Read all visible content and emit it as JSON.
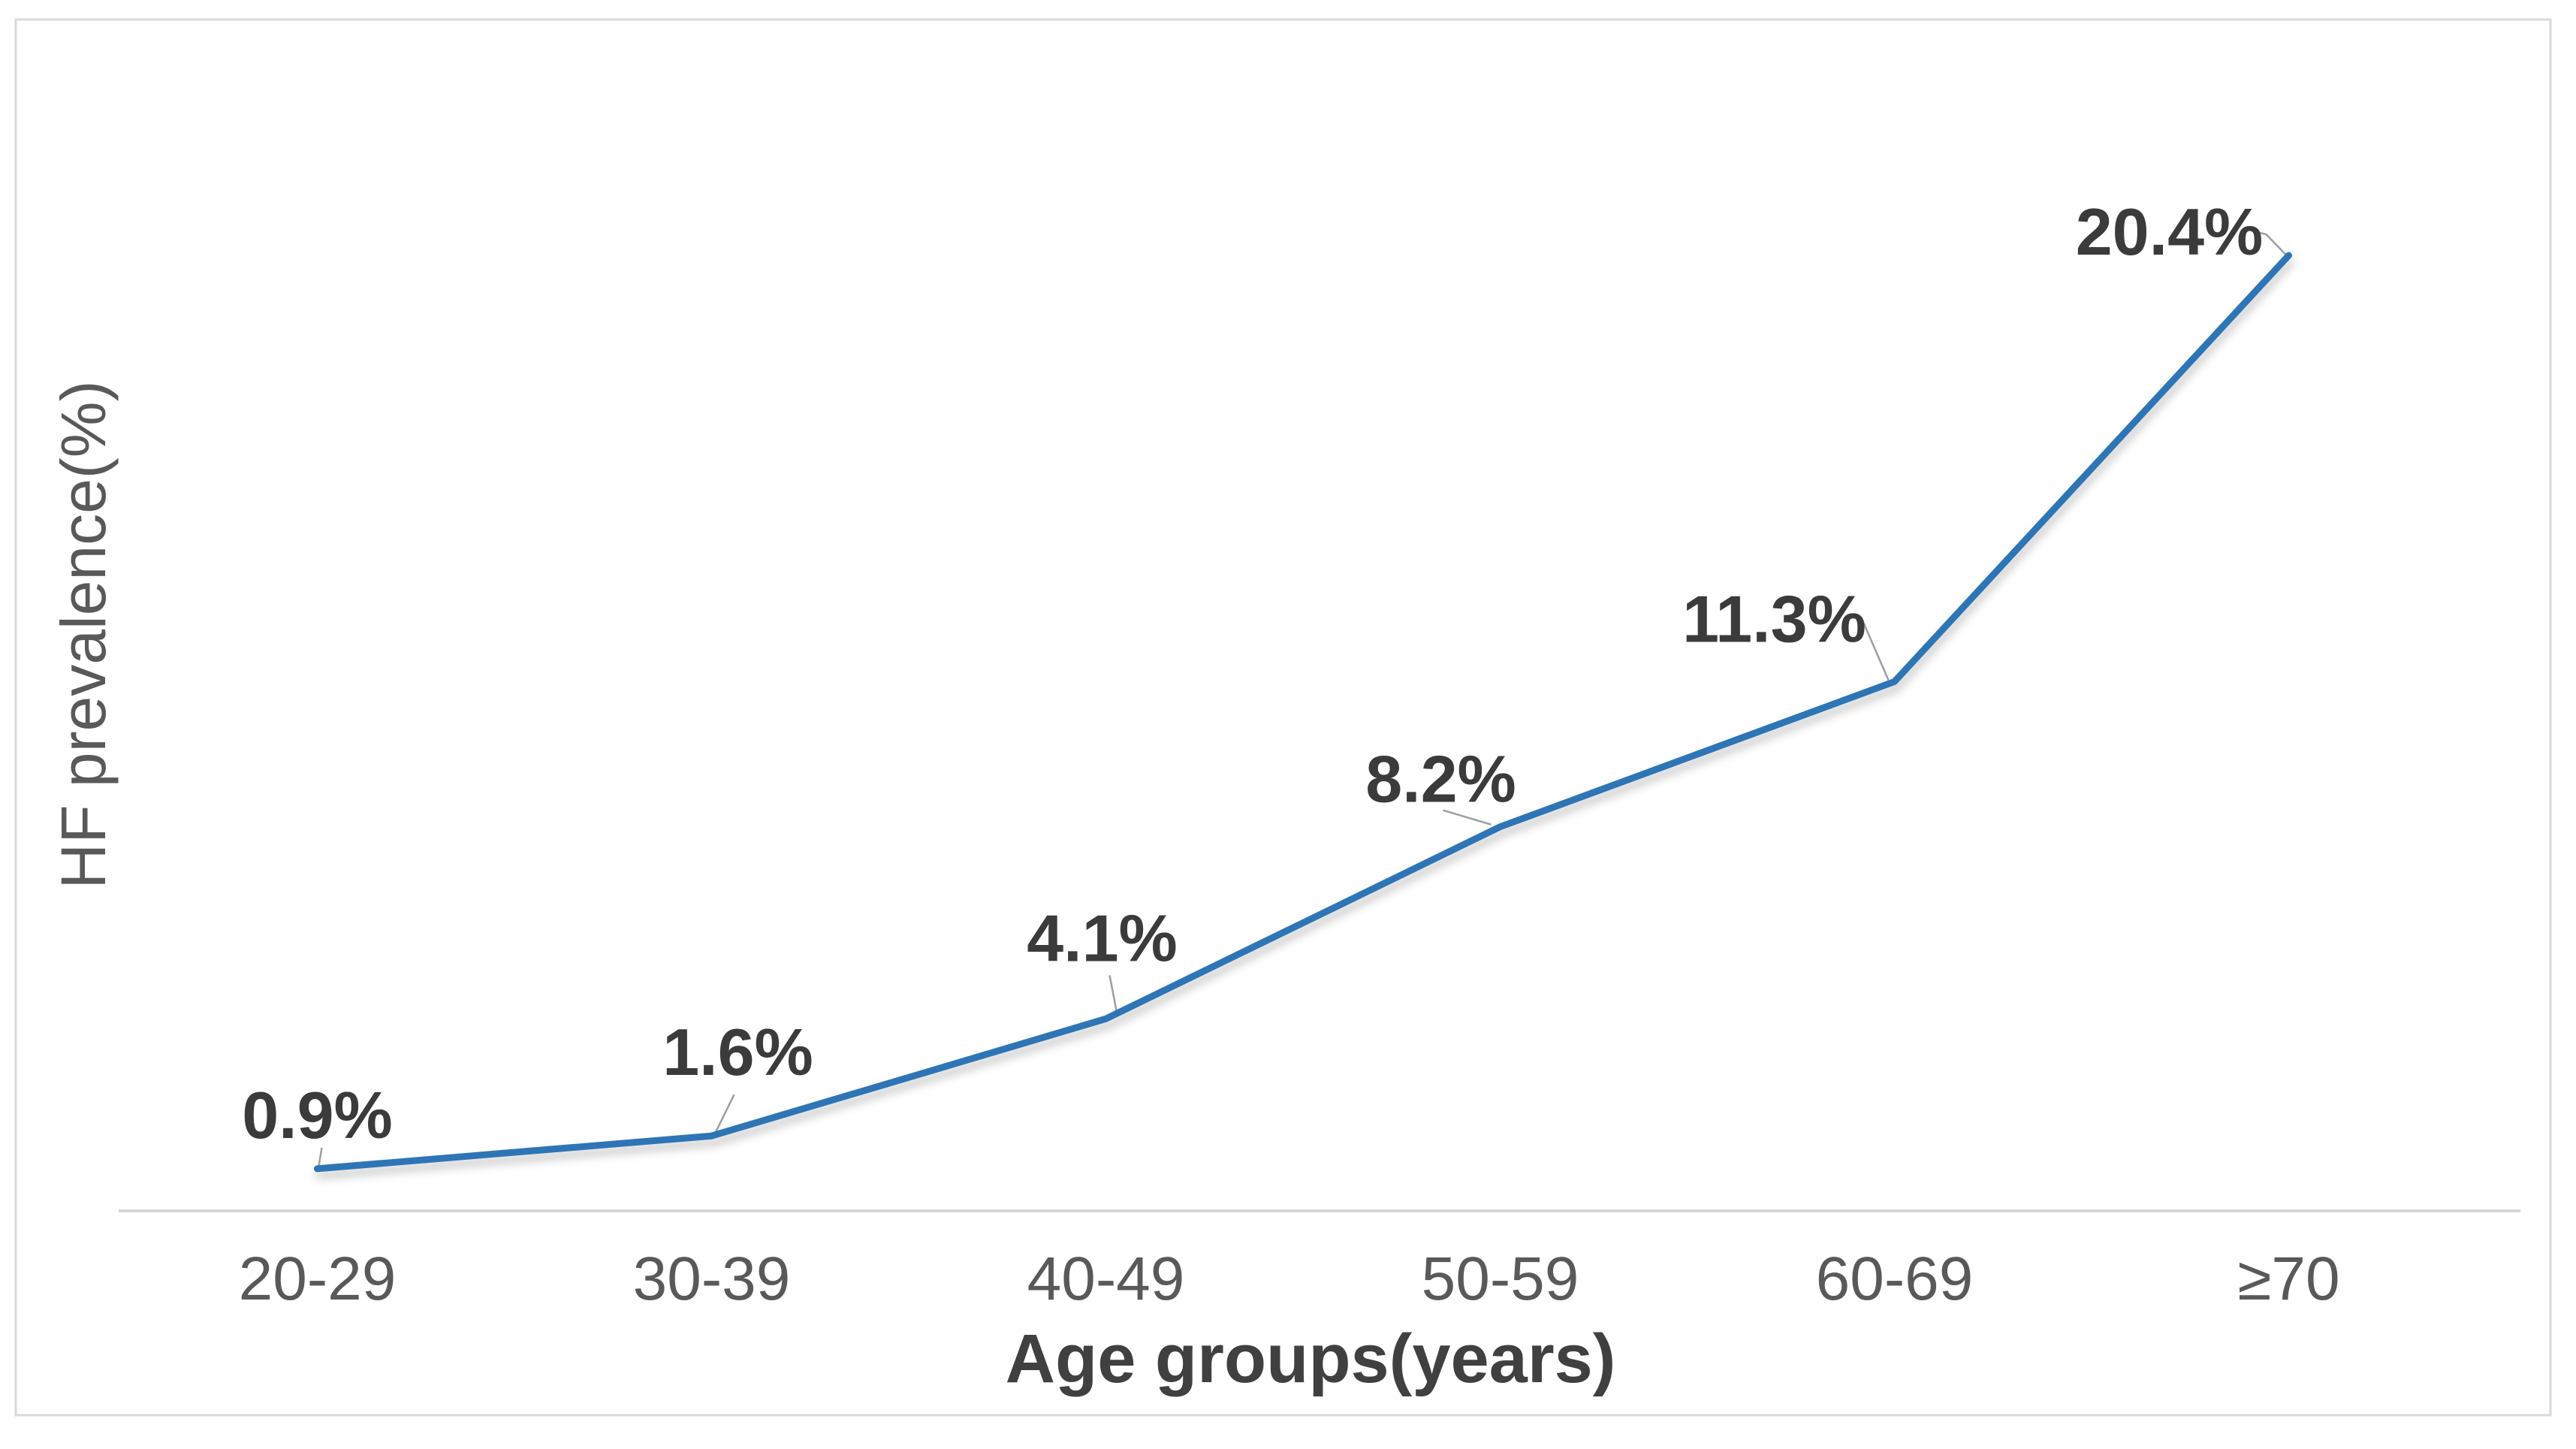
{
  "figure": {
    "background": "#ffffff",
    "border_color": "#d9d9d9"
  },
  "chart_data": {
    "type": "line",
    "title": "",
    "categories": [
      "20-29",
      "30-39",
      "40-49",
      "50-59",
      "60-69",
      "≥70"
    ],
    "values": [
      0.9,
      1.6,
      4.1,
      8.2,
      11.3,
      20.4
    ],
    "data_labels": [
      "0.9%",
      "1.6%",
      "4.1%",
      "8.2%",
      "11.3%",
      "20.4%"
    ],
    "xlabel": "Age groups(years)",
    "ylabel": "HF prevalence(%)",
    "ylim": [
      0,
      20.4
    ],
    "grid": false,
    "legend": "none",
    "line_color": "#2E75B6",
    "data_label_color": "#3b3b3b",
    "tick_label_color": "#595959",
    "axis_title_color": "#404040",
    "axis_line_color": "#d6d6d6",
    "leader_line_color": "#9e9e9e"
  }
}
